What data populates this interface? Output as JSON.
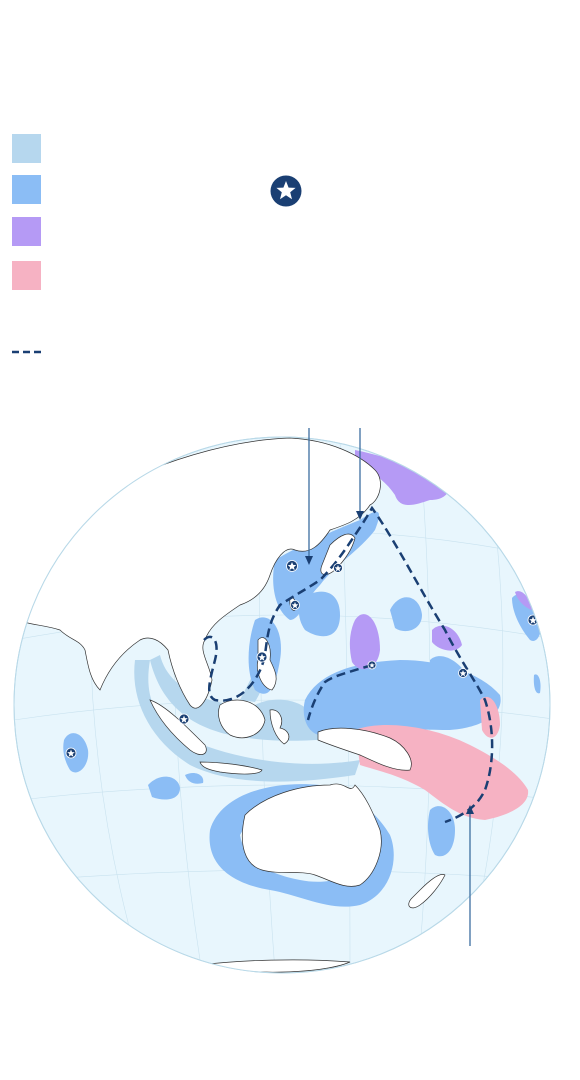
{
  "legend": {
    "items": [
      {
        "key": "zone-1",
        "color": "#b6d7ee"
      },
      {
        "key": "zone-2",
        "color": "#8bbdf5"
      },
      {
        "key": "zone-3",
        "color": "#b59af5"
      },
      {
        "key": "zone-4",
        "color": "#f6b2c3"
      }
    ],
    "route_line": {
      "color": "#1a3f73",
      "style": "dashed"
    },
    "base_icon": "star-in-circle-icon"
  },
  "map": {
    "type": "orthographic-globe",
    "region": "Asia-Pacific",
    "ocean_color": "#e8f6fd",
    "land_color": "#ffffff",
    "coast_color": "#333333",
    "route_color": "#1a3f73",
    "marker_icon": "star-marker-icon",
    "callout_count": 3
  }
}
